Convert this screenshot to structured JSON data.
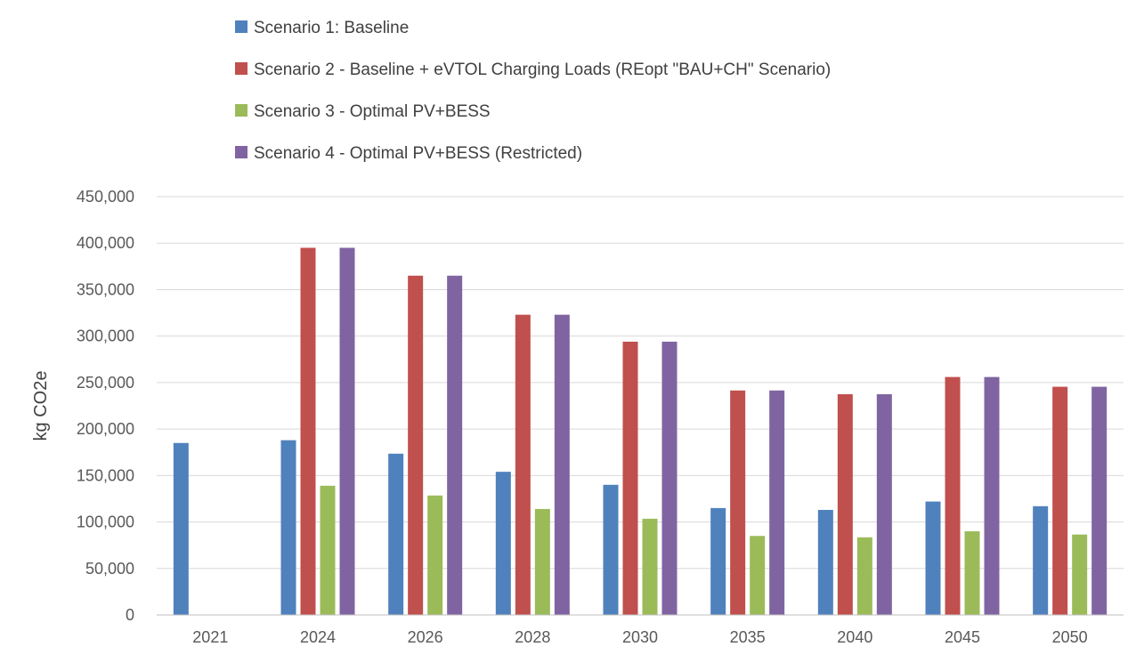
{
  "chart_data": {
    "type": "bar",
    "title": "",
    "xlabel": "",
    "ylabel": "kg CO2e",
    "ylim": [
      0,
      450000
    ],
    "y_ticks": [
      0,
      50000,
      100000,
      150000,
      200000,
      250000,
      300000,
      350000,
      400000,
      450000
    ],
    "y_tick_labels": [
      "0",
      "50,000",
      "100,000",
      "150,000",
      "200,000",
      "250,000",
      "300,000",
      "350,000",
      "400,000",
      "450,000"
    ],
    "grid": true,
    "legend_position": "top",
    "categories": [
      "2021",
      "2024",
      "2026",
      "2028",
      "2030",
      "2035",
      "2040",
      "2045",
      "2050"
    ],
    "series": [
      {
        "name": "Scenario 1: Baseline",
        "color": "#4f81bd",
        "values": [
          185000,
          188000,
          173500,
          154000,
          140000,
          115000,
          113000,
          122000,
          117000
        ]
      },
      {
        "name": "Scenario 2 - Baseline + eVTOL Charging Loads (REopt \"BAU+CH\" Scenario)",
        "color": "#c0504d",
        "values": [
          null,
          395000,
          365000,
          323000,
          294000,
          241500,
          237500,
          256000,
          245500
        ]
      },
      {
        "name": "Scenario 3 - Optimal PV+BESS",
        "color": "#9bbb59",
        "values": [
          null,
          139000,
          128500,
          114000,
          103500,
          85000,
          83500,
          90000,
          86500
        ]
      },
      {
        "name": "Scenario 4 - Optimal PV+BESS (Restricted)",
        "color": "#8064a2",
        "values": [
          null,
          395000,
          365000,
          323000,
          294000,
          241500,
          237500,
          256000,
          245500
        ]
      }
    ]
  }
}
